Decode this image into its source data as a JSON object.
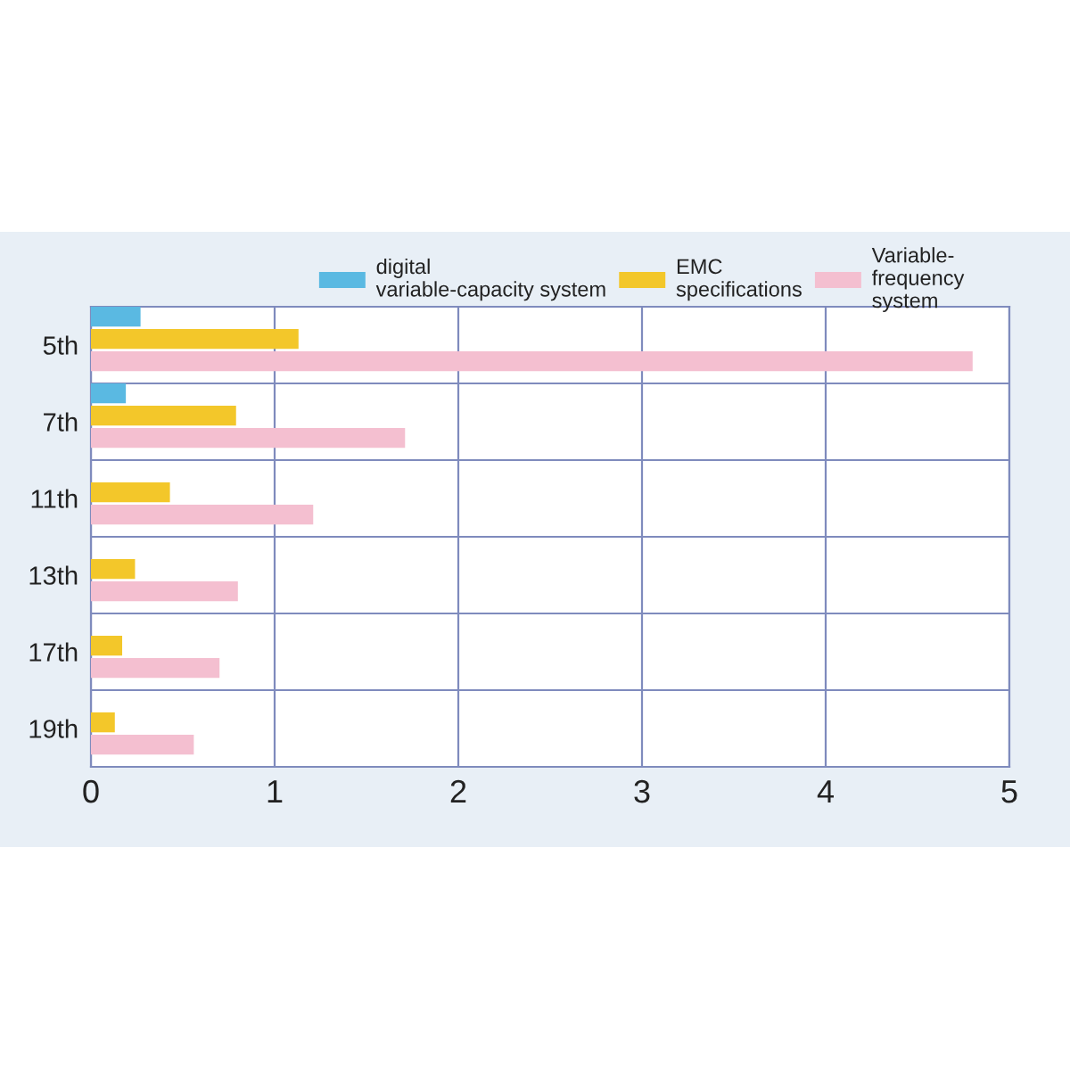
{
  "chart_data": {
    "type": "bar",
    "orientation": "horizontal",
    "categories": [
      "5th",
      "7th",
      "11th",
      "13th",
      "17th",
      "19th"
    ],
    "series": [
      {
        "name": "digital\nvariable-capacity system",
        "color": "#5ab9e2",
        "values": [
          0.27,
          0.19,
          null,
          null,
          null,
          null
        ]
      },
      {
        "name": "EMC\nspecifications",
        "color": "#f3c72a",
        "values": [
          1.13,
          0.79,
          0.43,
          0.24,
          0.17,
          0.13
        ]
      },
      {
        "name": "Variable-\nfrequency\nsystem",
        "color": "#f4bfd0",
        "values": [
          4.8,
          1.71,
          1.21,
          0.8,
          0.7,
          0.56
        ]
      }
    ],
    "xlim": [
      0,
      5
    ],
    "xticks": [
      0,
      1,
      2,
      3,
      4,
      5
    ],
    "grid": true,
    "legend": "top right"
  }
}
